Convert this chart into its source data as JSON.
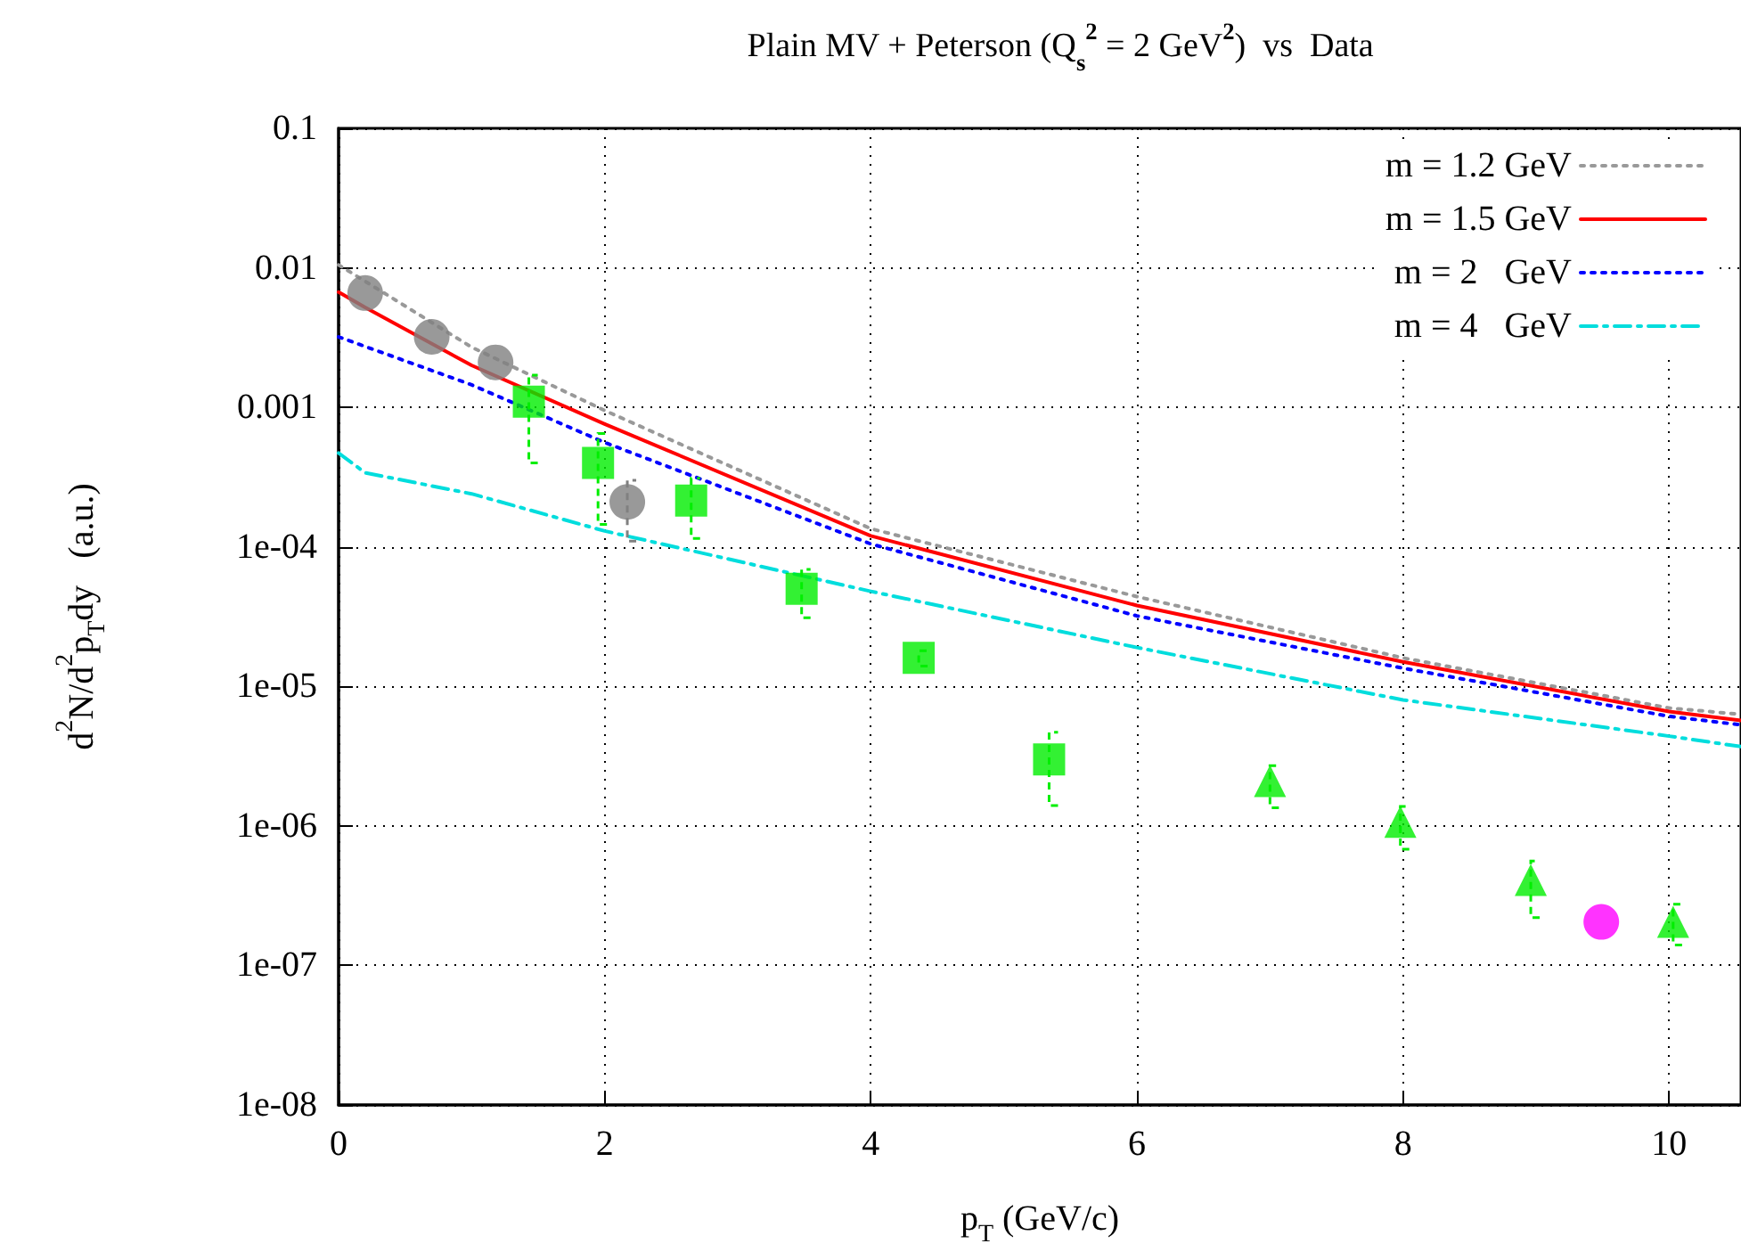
{
  "chart_data": {
    "type": "line",
    "title": "Plain MV + Peterson (Q$_{s}$$^{2}$ = 2 GeV$^{2}$)  vs  Data",
    "xlabel": "p$_{T}$ (GeV/c)",
    "ylabel": "d$^{2}$N/d$^{2}$p$_{T}$dy   (a.u.)",
    "log": "y",
    "grid": true,
    "legend": "top right",
    "xlim": [
      0,
      10.54
    ],
    "xticks": [
      0,
      2,
      4,
      6,
      8,
      10
    ],
    "ylim": [
      1e-08,
      0.1
    ],
    "yticks": [
      0.1,
      0.01,
      0.001,
      {
        "value": 0.0001,
        "label": "1e-04"
      },
      {
        "value": 1e-05,
        "label": "1e-05"
      },
      {
        "value": 1e-06,
        "label": "1e-06"
      },
      {
        "value": 1e-07,
        "label": "1e-07"
      },
      {
        "value": 1e-08,
        "label": "1e-08"
      }
    ],
    "series": [
      {
        "name": "m = 1.2 GeV",
        "color": "#999999",
        "line_style": "dotted",
        "marker": "none",
        "x": [
          0,
          1,
          2,
          4,
          6,
          8,
          10,
          10.54
        ],
        "values": [
          0.0105,
          0.0027,
          0.00095,
          0.000135,
          4.4e-05,
          1.6e-05,
          7e-06,
          6.3e-06
        ]
      },
      {
        "name": "m = 1.5 GeV",
        "color": "#ff0000",
        "line_style": "solid",
        "marker": "none",
        "x": [
          0,
          0.2,
          1,
          2,
          4,
          6,
          8,
          10,
          10.54
        ],
        "values": [
          0.0067,
          0.0052,
          0.002,
          0.00076,
          0.00012,
          3.8e-05,
          1.5e-05,
          6.6e-06,
          5.7e-06
        ]
      },
      {
        "name": "m = 2   GeV",
        "color": "#0000ff",
        "line_style": "dotted",
        "marker": "none",
        "x": [
          0,
          1,
          2,
          4,
          6,
          8,
          10,
          10.54
        ],
        "values": [
          0.0032,
          0.00145,
          0.00056,
          0.000105,
          3.2e-05,
          1.35e-05,
          6.1e-06,
          5.3e-06
        ]
      },
      {
        "name": "m = 4   GeV",
        "color": "#00dddd",
        "line_style": "dashed",
        "marker": "none",
        "x": [
          0,
          0.2,
          1,
          2,
          4,
          6,
          8,
          10,
          10.54
        ],
        "values": [
          0.00047,
          0.00034,
          0.00024,
          0.00013,
          4.8e-05,
          1.9e-05,
          8e-06,
          4.4e-06,
          3.7e-06
        ]
      },
      {
        "type": "scatter",
        "color": "#808080",
        "marker": "circle",
        "x": [
          0.2,
          0.7,
          1.18,
          2.17
        ],
        "values": [
          0.0066,
          0.0032,
          0.0021,
          0.00021
        ],
        "errors": [
          null,
          null,
          null,
          [
            0.00011,
            0.0003
          ]
        ]
      },
      {
        "type": "scatter",
        "color": "#00ee00",
        "marker": "square",
        "x": [
          1.43,
          1.95,
          2.65,
          3.48,
          4.36,
          5.34
        ],
        "values": [
          0.0011,
          0.0004,
          0.000215,
          5e-05,
          1.6e-05,
          3e-06
        ],
        "errors": [
          [
            0.0004,
            0.0017
          ],
          [
            0.000145,
            0.00065
          ],
          [
            0.000115,
            0.00031
          ],
          [
            3.1e-05,
            6.9e-05
          ],
          [
            1.4e-05,
            1.8e-05
          ],
          [
            1.4e-06,
            4.7e-06
          ]
        ]
      },
      {
        "type": "scatter",
        "color": "#00ee00",
        "marker": "triangle",
        "x": [
          7.0,
          7.98,
          8.96,
          10.03
        ],
        "values": [
          2.1e-06,
          1.07e-06,
          4.1e-07,
          2.05e-07
        ],
        "errors": [
          [
            1.35e-06,
            2.7e-06
          ],
          [
            6.8e-07,
            1.38e-06
          ],
          [
            2.2e-07,
            5.6e-07
          ],
          [
            1.4e-07,
            2.75e-07
          ]
        ]
      },
      {
        "type": "scatter",
        "color": "#ff00ff",
        "marker": "circle",
        "x": [
          9.49
        ],
        "values": [
          2.05e-07
        ]
      }
    ]
  }
}
